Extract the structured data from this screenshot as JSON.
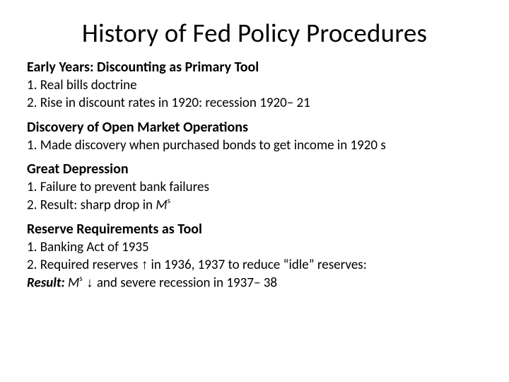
{
  "title": "History of Fed Policy Procedures",
  "colors": {
    "background": "#ffffff",
    "text": "#000000"
  },
  "typography": {
    "title_fontsize": 37,
    "heading_fontsize": 20,
    "body_fontsize": 19,
    "font_family": "Calibri"
  },
  "sections": [
    {
      "heading": "Early Years: Discounting as Primary Tool",
      "items": [
        {
          "text": "1.  Real bills doctrine"
        },
        {
          "text": "2.  Rise in discount rates in 1920: recession 1920– 21"
        }
      ]
    },
    {
      "heading": "Discovery of Open Market Operations",
      "items": [
        {
          "text": "1.  Made discovery when purchased bonds to get income in 1920 s"
        }
      ]
    },
    {
      "heading": "Great Depression",
      "items": [
        {
          "text": "1.  Failure to prevent bank failures"
        },
        {
          "prefix": "2.  Result: sharp drop in ",
          "math_base": "M",
          "math_sup": "s"
        }
      ]
    },
    {
      "heading": "Reserve Requirements as Tool",
      "items": [
        {
          "text": "1.  Banking Act of 1935"
        },
        {
          "prefix": "2.  Required reserves ",
          "arrow": "↑",
          "suffix": " in 1936, 1937 to reduce “idle” reserves:"
        },
        {
          "result_label": "Result: ",
          "math_base": "M",
          "math_sup": "s",
          "arrow": " ↓ ",
          "suffix": "and severe recession in 1937– 38"
        }
      ]
    }
  ]
}
